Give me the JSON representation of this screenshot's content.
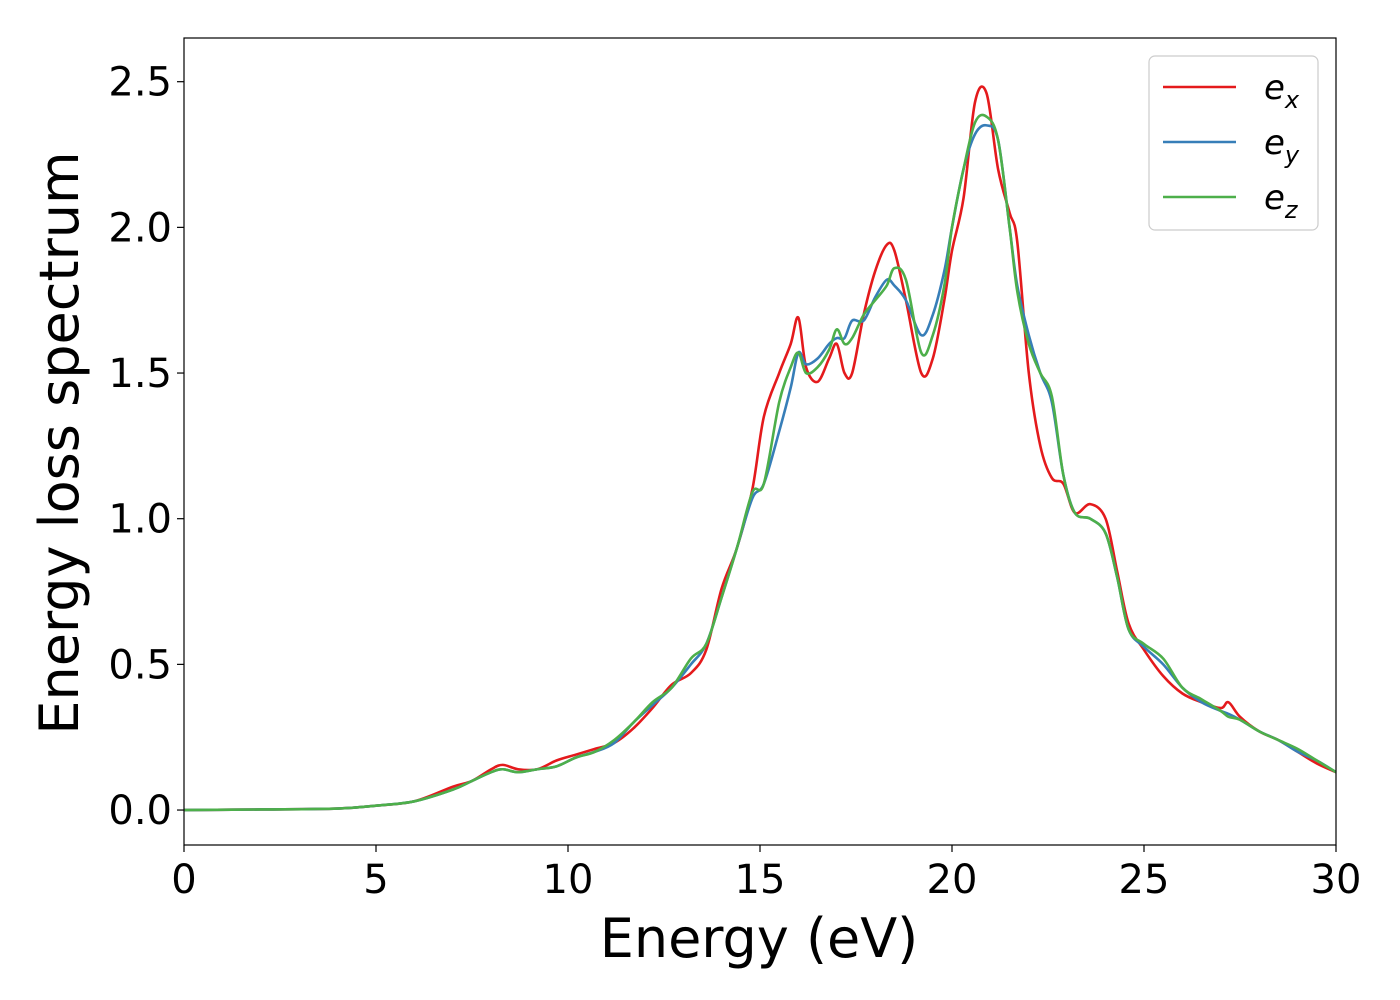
{
  "chart_data": {
    "type": "line",
    "xlabel": "Energy (eV)",
    "ylabel": "Energy loss spectrum",
    "xlim": [
      0,
      30
    ],
    "ylim": [
      -0.12,
      2.65
    ],
    "xticks": [
      0,
      5,
      10,
      15,
      20,
      25,
      30
    ],
    "xtick_labels": [
      "0",
      "5",
      "10",
      "15",
      "20",
      "25",
      "30"
    ],
    "yticks": [
      0.0,
      0.5,
      1.0,
      1.5,
      2.0,
      2.5
    ],
    "ytick_labels": [
      "0.0",
      "0.5",
      "1.0",
      "1.5",
      "2.0",
      "2.5"
    ],
    "grid": false,
    "legend_position": "top-right",
    "series": [
      {
        "name": "e_x",
        "legend_base": "e",
        "legend_sub": "x",
        "color": "#e41a1c",
        "x": [
          0,
          2,
          4,
          5,
          6,
          7,
          7.5,
          8,
          8.3,
          8.7,
          9.2,
          9.7,
          10.2,
          10.7,
          11.2,
          11.7,
          12.2,
          12.7,
          13.2,
          13.6,
          14,
          14.4,
          14.8,
          15.1,
          15.5,
          15.8,
          16,
          16.2,
          16.5,
          16.8,
          17,
          17.2,
          17.4,
          17.7,
          18,
          18.3,
          18.5,
          18.8,
          19.2,
          19.5,
          19.8,
          20,
          20.3,
          20.6,
          20.9,
          21.2,
          21.5,
          21.7,
          22,
          22.3,
          22.6,
          22.9,
          23.2,
          23.6,
          24,
          24.3,
          24.6,
          25,
          25.5,
          26,
          26.5,
          27,
          27.2,
          27.5,
          28,
          28.5,
          29,
          29.5,
          30
        ],
        "y": [
          0,
          0.002,
          0.005,
          0.015,
          0.03,
          0.08,
          0.1,
          0.14,
          0.155,
          0.14,
          0.14,
          0.17,
          0.19,
          0.21,
          0.23,
          0.28,
          0.35,
          0.43,
          0.47,
          0.55,
          0.76,
          0.9,
          1.1,
          1.35,
          1.5,
          1.6,
          1.69,
          1.52,
          1.47,
          1.55,
          1.6,
          1.5,
          1.5,
          1.7,
          1.85,
          1.94,
          1.92,
          1.75,
          1.5,
          1.55,
          1.75,
          1.92,
          2.1,
          2.43,
          2.46,
          2.2,
          2.05,
          1.95,
          1.5,
          1.25,
          1.14,
          1.12,
          1.02,
          1.05,
          1.0,
          0.82,
          0.64,
          0.55,
          0.46,
          0.4,
          0.37,
          0.35,
          0.37,
          0.32,
          0.27,
          0.24,
          0.2,
          0.16,
          0.13
        ]
      },
      {
        "name": "e_y",
        "legend_base": "e",
        "legend_sub": "y",
        "color": "#377eb8",
        "x": [
          0,
          2,
          4,
          5,
          6,
          7,
          7.5,
          8,
          8.3,
          8.7,
          9.2,
          9.7,
          10.2,
          10.7,
          11.2,
          11.7,
          12.2,
          12.7,
          13.2,
          13.6,
          14,
          14.4,
          14.8,
          15.1,
          15.5,
          15.8,
          16,
          16.2,
          16.5,
          16.8,
          17,
          17.2,
          17.4,
          17.7,
          18,
          18.3,
          18.5,
          18.8,
          19.2,
          19.5,
          19.8,
          20,
          20.3,
          20.6,
          20.9,
          21.2,
          21.5,
          21.7,
          22,
          22.3,
          22.6,
          22.9,
          23.2,
          23.6,
          24,
          24.3,
          24.6,
          25,
          25.5,
          26,
          26.5,
          27,
          27.2,
          27.5,
          28,
          28.5,
          29,
          29.5,
          30
        ],
        "y": [
          0,
          0.002,
          0.005,
          0.015,
          0.03,
          0.07,
          0.1,
          0.13,
          0.14,
          0.13,
          0.14,
          0.15,
          0.18,
          0.2,
          0.23,
          0.3,
          0.36,
          0.42,
          0.5,
          0.57,
          0.73,
          0.9,
          1.07,
          1.12,
          1.3,
          1.45,
          1.57,
          1.53,
          1.55,
          1.6,
          1.62,
          1.62,
          1.68,
          1.68,
          1.76,
          1.82,
          1.8,
          1.75,
          1.63,
          1.7,
          1.85,
          2.0,
          2.2,
          2.32,
          2.35,
          2.3,
          2.0,
          1.8,
          1.63,
          1.5,
          1.4,
          1.15,
          1.02,
          1.0,
          0.95,
          0.8,
          0.62,
          0.56,
          0.5,
          0.42,
          0.37,
          0.34,
          0.33,
          0.31,
          0.27,
          0.24,
          0.2,
          0.17,
          0.13
        ]
      },
      {
        "name": "e_z",
        "legend_base": "e",
        "legend_sub": "z",
        "color": "#4daf4a",
        "x": [
          0,
          2,
          4,
          5,
          6,
          7,
          7.5,
          8,
          8.3,
          8.7,
          9.2,
          9.7,
          10.2,
          10.7,
          11.2,
          11.7,
          12.2,
          12.7,
          13.2,
          13.6,
          14,
          14.4,
          14.8,
          15.1,
          15.5,
          15.8,
          16,
          16.2,
          16.5,
          16.8,
          17,
          17.2,
          17.4,
          17.7,
          18,
          18.3,
          18.5,
          18.8,
          19.2,
          19.5,
          19.8,
          20,
          20.3,
          20.6,
          20.9,
          21.2,
          21.5,
          21.7,
          22,
          22.3,
          22.6,
          22.9,
          23.2,
          23.6,
          24,
          24.3,
          24.6,
          25,
          25.5,
          26,
          26.5,
          27,
          27.2,
          27.5,
          28,
          28.5,
          29,
          29.5,
          30
        ],
        "y": [
          0,
          0.002,
          0.005,
          0.015,
          0.03,
          0.07,
          0.1,
          0.13,
          0.14,
          0.13,
          0.14,
          0.15,
          0.18,
          0.2,
          0.24,
          0.3,
          0.37,
          0.42,
          0.52,
          0.57,
          0.73,
          0.9,
          1.09,
          1.12,
          1.4,
          1.52,
          1.57,
          1.5,
          1.52,
          1.58,
          1.65,
          1.6,
          1.62,
          1.7,
          1.75,
          1.8,
          1.86,
          1.82,
          1.57,
          1.63,
          1.8,
          2.0,
          2.2,
          2.36,
          2.38,
          2.3,
          2.0,
          1.78,
          1.6,
          1.5,
          1.42,
          1.15,
          1.02,
          1.0,
          0.95,
          0.8,
          0.62,
          0.57,
          0.52,
          0.42,
          0.38,
          0.34,
          0.32,
          0.31,
          0.27,
          0.24,
          0.21,
          0.17,
          0.13
        ]
      }
    ]
  }
}
